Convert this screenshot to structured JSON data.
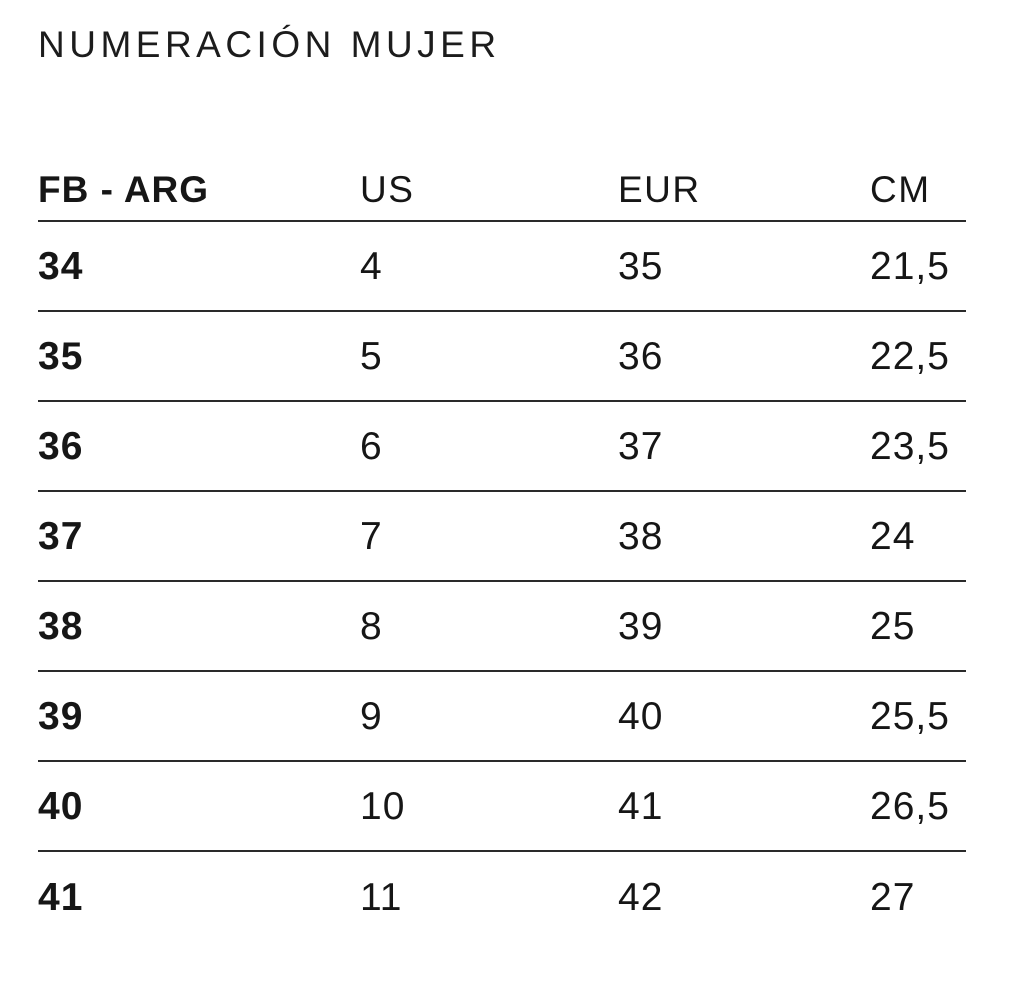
{
  "title": "NUMERACIÓN MUJER",
  "colors": {
    "background": "#ffffff",
    "text": "#161616",
    "rule_line": "#2a2a2a"
  },
  "chart_data": {
    "type": "table",
    "title": "NUMERACIÓN MUJER",
    "columns": [
      "FB - ARG",
      "US",
      "EUR",
      "CM"
    ],
    "rows": [
      [
        "34",
        "4",
        "35",
        "21,5"
      ],
      [
        "35",
        "5",
        "36",
        "22,5"
      ],
      [
        "36",
        "6",
        "37",
        "23,5"
      ],
      [
        "37",
        "7",
        "38",
        "24"
      ],
      [
        "38",
        "8",
        "39",
        "25"
      ],
      [
        "39",
        "9",
        "40",
        "25,5"
      ],
      [
        "40",
        "10",
        "41",
        "26,5"
      ],
      [
        "41",
        "11",
        "42",
        "27"
      ]
    ]
  }
}
